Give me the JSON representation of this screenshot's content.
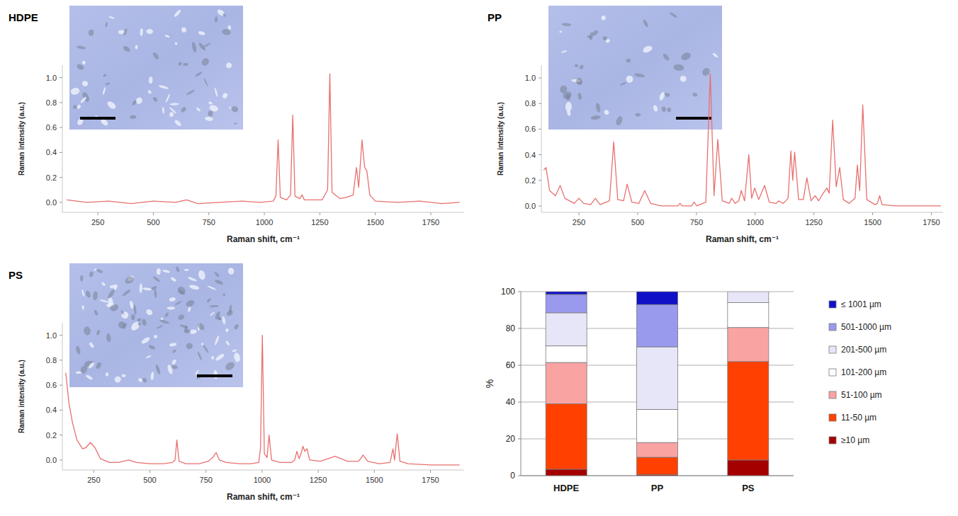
{
  "chart_data": [
    {
      "type": "line",
      "title": "HDPE",
      "x_label": "Raman shift, cm⁻¹",
      "y_label": "Raman intensity (a.u.)",
      "xlim": [
        90,
        1900
      ],
      "ylim": [
        -0.08,
        1.1
      ],
      "xticks": [
        250,
        500,
        750,
        1000,
        1250,
        1500,
        1750
      ],
      "yticks": [
        {
          "value": 0,
          "label": "0.0"
        },
        0.2,
        0.4,
        0.6,
        0.8,
        {
          "value": 1,
          "label": "1.0"
        }
      ],
      "color": "#e8706e",
      "x": [
        110,
        200,
        300,
        400,
        500,
        600,
        650,
        700,
        800,
        900,
        980,
        1040,
        1052,
        1062,
        1072,
        1100,
        1118,
        1128,
        1138,
        1160,
        1170,
        1180,
        1260,
        1285,
        1295,
        1305,
        1340,
        1370,
        1400,
        1415,
        1425,
        1440,
        1452,
        1462,
        1475,
        1500,
        1600,
        1700,
        1800,
        1880
      ],
      "values": [
        0.02,
        0,
        0.01,
        -0.01,
        0.01,
        0,
        0.02,
        -0.01,
        0,
        0.01,
        0,
        0.01,
        0.05,
        0.5,
        0.04,
        0.02,
        0.06,
        0.7,
        0.05,
        0.03,
        0.06,
        0.02,
        0.02,
        0.1,
        1.03,
        0.08,
        0.03,
        0.04,
        0.06,
        0.28,
        0.12,
        0.5,
        0.28,
        0.25,
        0.06,
        0.01,
        0,
        0.01,
        -0.01,
        0
      ]
    },
    {
      "type": "line",
      "title": "PP",
      "x_label": "Raman shift, cm⁻¹",
      "y_label": "Raman intensity (a.u.)",
      "xlim": [
        90,
        1800
      ],
      "ylim": [
        -0.05,
        1.1
      ],
      "xticks": [
        250,
        500,
        750,
        1000,
        1250,
        1500,
        1750
      ],
      "yticks": [
        {
          "value": 0,
          "label": "0.0"
        },
        0.2,
        0.4,
        0.6,
        0.8,
        {
          "value": 1,
          "label": "1.0"
        }
      ],
      "color": "#e8706e",
      "x": [
        100,
        110,
        125,
        150,
        170,
        190,
        230,
        250,
        270,
        300,
        320,
        340,
        380,
        398,
        415,
        440,
        455,
        475,
        505,
        530,
        555,
        600,
        670,
        680,
        690,
        730,
        740,
        752,
        790,
        809,
        825,
        841,
        860,
        890,
        900,
        915,
        930,
        941,
        955,
        973,
        985,
        998,
        1015,
        1040,
        1060,
        1090,
        1100,
        1120,
        1140,
        1152,
        1160,
        1168,
        1185,
        1205,
        1220,
        1238,
        1255,
        1270,
        1290,
        1305,
        1315,
        1330,
        1345,
        1360,
        1375,
        1400,
        1425,
        1435,
        1445,
        1458,
        1475,
        1510,
        1520,
        1530,
        1540,
        1600,
        1700,
        1790
      ],
      "values": [
        0.28,
        0.3,
        0.12,
        0.08,
        0.16,
        0.06,
        0.02,
        0.06,
        0.02,
        0.01,
        0.06,
        0.01,
        0.04,
        0.5,
        0.05,
        0.04,
        0.17,
        0.03,
        0.02,
        0.12,
        0.02,
        0,
        0,
        0.02,
        0,
        0,
        0.03,
        0,
        0.03,
        1.03,
        0.08,
        0.52,
        0.04,
        0.02,
        0.06,
        0.02,
        0.04,
        0.12,
        0.04,
        0.4,
        0.06,
        0.14,
        0.05,
        0.16,
        0.03,
        0.02,
        0.04,
        0.02,
        0.06,
        0.43,
        0.2,
        0.42,
        0.05,
        0.05,
        0.22,
        0.04,
        0.08,
        0.04,
        0.1,
        0.14,
        0.1,
        0.67,
        0.15,
        0.3,
        0.05,
        0.02,
        0.06,
        0.32,
        0.12,
        0.79,
        0.05,
        0.01,
        0.02,
        0.08,
        0.01,
        0,
        0,
        0
      ]
    },
    {
      "type": "line",
      "title": "PS",
      "x_label": "Raman shift, cm⁻¹",
      "y_label": "Raman intensity (a.u.)",
      "xlim": [
        110,
        1900
      ],
      "ylim": [
        -0.08,
        1.1
      ],
      "xticks": [
        250,
        500,
        750,
        1000,
        1250,
        1500,
        1750
      ],
      "yticks": [
        {
          "value": 0,
          "label": "0.0"
        },
        0.2,
        0.4,
        0.6,
        0.8,
        {
          "value": 1,
          "label": "1.0"
        }
      ],
      "color": "#e8706e",
      "x": [
        125,
        140,
        155,
        175,
        200,
        215,
        235,
        255,
        280,
        320,
        360,
        405,
        440,
        500,
        560,
        600,
        612,
        620,
        630,
        660,
        720,
        760,
        780,
        795,
        810,
        840,
        900,
        950,
        985,
        993,
        1001,
        1010,
        1022,
        1031,
        1042,
        1080,
        1130,
        1145,
        1155,
        1165,
        1175,
        1182,
        1190,
        1200,
        1212,
        1260,
        1325,
        1380,
        1430,
        1450,
        1470,
        1520,
        1570,
        1583,
        1590,
        1602,
        1614,
        1650,
        1750,
        1880
      ],
      "values": [
        0.7,
        0.45,
        0.3,
        0.16,
        0.09,
        0.1,
        0.14,
        0.1,
        0.01,
        -0.02,
        -0.02,
        0,
        -0.02,
        -0.03,
        -0.03,
        -0.02,
        0,
        0.16,
        -0.01,
        -0.03,
        -0.03,
        -0.01,
        0.02,
        0.06,
        0,
        -0.02,
        -0.03,
        -0.03,
        -0.02,
        0.1,
        1,
        0.05,
        0.02,
        0.2,
        0,
        -0.02,
        -0.02,
        0,
        0.07,
        0.01,
        0.06,
        0.11,
        0.07,
        0.09,
        0,
        -0.01,
        0.03,
        -0.01,
        -0.01,
        0.04,
        -0.01,
        -0.03,
        -0.02,
        0.09,
        0,
        0.21,
        -0.01,
        -0.03,
        -0.04,
        -0.04
      ]
    },
    {
      "type": "bar",
      "stacked": true,
      "grid": true,
      "legend": "right",
      "y_label": "%",
      "categories": [
        "HDPE",
        "PP",
        "PS"
      ],
      "ylim": [
        0,
        100
      ],
      "yticks": [
        0,
        20,
        40,
        60,
        80,
        100
      ],
      "series": [
        {
          "name": "≥10 µm",
          "color": "#a50000",
          "values": [
            3.5,
            0.5,
            8.5
          ]
        },
        {
          "name": "11-50 µm",
          "color": "#ff4000",
          "values": [
            35.5,
            9.5,
            53.5
          ]
        },
        {
          "name": "51-100 µm",
          "color": "#f9a3a3",
          "values": [
            22.5,
            8,
            18.5
          ]
        },
        {
          "name": "101-200 µm",
          "color": "#ffffff",
          "values": [
            9,
            18,
            13.5
          ]
        },
        {
          "name": "201-500 µm",
          "color": "#e6e6f8",
          "values": [
            18,
            34,
            6
          ]
        },
        {
          "name": "501-1000 µm",
          "color": "#9999ee",
          "values": [
            10,
            23,
            0
          ]
        },
        {
          "name": "≤ 1001 µm",
          "color": "#1010c8",
          "values": [
            1.5,
            7,
            0
          ]
        }
      ]
    }
  ]
}
